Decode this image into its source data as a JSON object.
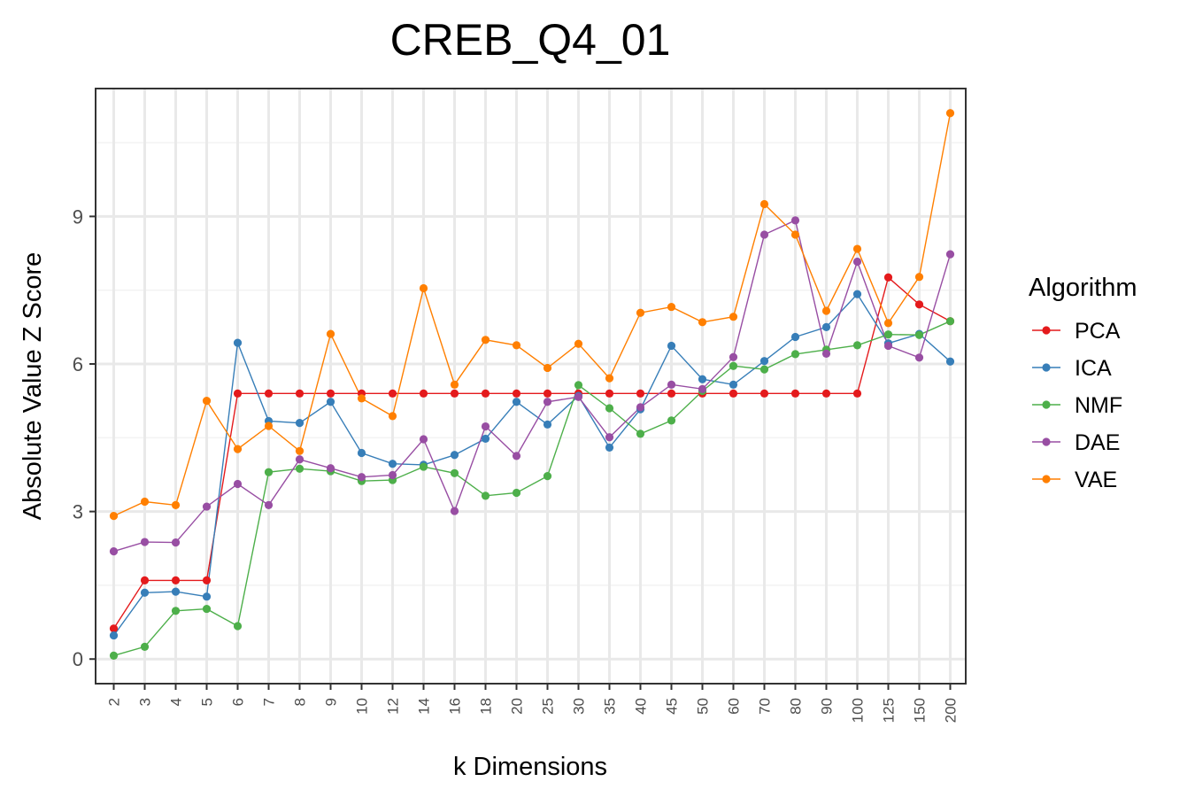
{
  "chart_data": {
    "type": "line",
    "title": "CREB_Q4_01",
    "xlabel": "k Dimensions",
    "ylabel": "Absolute Value Z Score",
    "categories": [
      "2",
      "3",
      "4",
      "5",
      "6",
      "7",
      "8",
      "9",
      "10",
      "12",
      "14",
      "16",
      "18",
      "20",
      "25",
      "30",
      "35",
      "40",
      "45",
      "50",
      "60",
      "70",
      "80",
      "90",
      "100",
      "125",
      "150",
      "200"
    ],
    "ylim": [
      -0.5,
      11.6
    ],
    "yticks": [
      "0",
      "3",
      "6",
      "9"
    ],
    "grid": true,
    "legend": {
      "title": "Algorithm",
      "position": "right"
    },
    "series": [
      {
        "name": "PCA",
        "color": "#E41A1C",
        "values": [
          0.62,
          1.6,
          1.6,
          1.6,
          5.4,
          5.4,
          5.4,
          5.4,
          5.4,
          5.4,
          5.4,
          5.4,
          5.4,
          5.4,
          5.4,
          5.4,
          5.4,
          5.4,
          5.4,
          5.4,
          5.4,
          5.4,
          5.4,
          5.4,
          5.4,
          7.76,
          7.21,
          6.87
        ]
      },
      {
        "name": "ICA",
        "color": "#377EB8",
        "values": [
          0.48,
          1.35,
          1.37,
          1.27,
          6.43,
          4.84,
          4.8,
          5.23,
          4.19,
          3.97,
          3.95,
          4.15,
          4.48,
          5.23,
          4.77,
          5.35,
          4.3,
          5.08,
          6.37,
          5.69,
          5.58,
          6.06,
          6.55,
          6.75,
          7.42,
          6.42,
          6.61,
          6.05
        ]
      },
      {
        "name": "NMF",
        "color": "#4DAF4A",
        "values": [
          0.07,
          0.25,
          0.98,
          1.02,
          0.67,
          3.8,
          3.87,
          3.82,
          3.62,
          3.64,
          3.91,
          3.78,
          3.32,
          3.38,
          3.72,
          5.57,
          5.1,
          4.58,
          4.85,
          5.45,
          5.96,
          5.89,
          6.2,
          6.29,
          6.38,
          6.6,
          6.59,
          6.87
        ]
      },
      {
        "name": "DAE",
        "color": "#984EA3",
        "values": [
          2.19,
          2.38,
          2.37,
          3.1,
          3.56,
          3.13,
          4.06,
          3.88,
          3.7,
          3.74,
          4.47,
          3.01,
          4.73,
          4.13,
          5.23,
          5.33,
          4.51,
          5.12,
          5.58,
          5.49,
          6.14,
          8.63,
          8.92,
          6.21,
          8.08,
          6.37,
          6.13,
          8.23
        ]
      },
      {
        "name": "VAE",
        "color": "#FF7F00",
        "values": [
          2.91,
          3.2,
          3.13,
          5.25,
          4.27,
          4.74,
          4.23,
          6.61,
          5.3,
          4.94,
          7.54,
          5.58,
          6.49,
          6.38,
          5.92,
          6.41,
          5.71,
          7.04,
          7.16,
          6.85,
          6.96,
          9.25,
          8.63,
          7.08,
          8.34,
          6.83,
          7.77,
          11.1
        ]
      }
    ]
  }
}
